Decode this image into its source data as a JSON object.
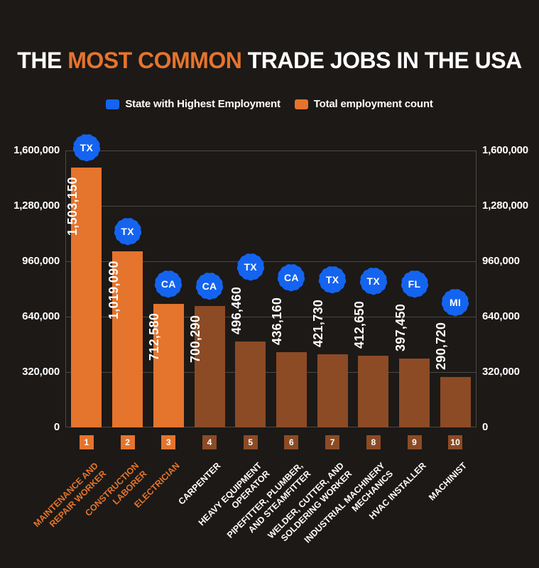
{
  "title": {
    "part1": "THE ",
    "highlight": "MOST COMMON",
    "part2": " TRADE JOBS IN THE USA"
  },
  "legend": {
    "items": [
      {
        "label": "State with Highest Employment",
        "color": "#1464F0"
      },
      {
        "label": "Total employment count",
        "color": "#E5742C"
      }
    ]
  },
  "colors": {
    "background": "#1C1917",
    "orange": "#E5742C",
    "brown": "#8C4B25",
    "badge_blue": "#1464F0",
    "grid": "#4C4843",
    "text": "#FFFFFF"
  },
  "chart_data": {
    "type": "bar",
    "title": "THE MOST COMMON TRADE JOBS IN THE USA",
    "xlabel": "",
    "ylabel": "",
    "ylim": [
      0,
      1600000
    ],
    "ytick_labels": [
      "0",
      "320,000",
      "640,000",
      "960,000",
      "1,280,000",
      "1,600,000"
    ],
    "grid": true,
    "legend_position": "top",
    "series_note": "bar color orange = top-3 trade (highlighted), brown = ranks 4-10; blue seal badge = state with highest employment",
    "items": [
      {
        "rank": 1,
        "label": "MAINTENANCE AND REPAIR WORKER",
        "label_lines": [
          "MAINTENANCE AND",
          "REPAIR WORKER"
        ],
        "value": 1503150,
        "value_label": "1,503,150",
        "state": "TX",
        "highlighted": true
      },
      {
        "rank": 2,
        "label": "CONSTRUCTION LABORER",
        "label_lines": [
          "CONSTRUCTION",
          "LABORER"
        ],
        "value": 1019090,
        "value_label": "1,019,090",
        "state": "TX",
        "highlighted": true
      },
      {
        "rank": 3,
        "label": "ELECTRICIAN",
        "label_lines": [
          "ELECTRICIAN"
        ],
        "value": 712580,
        "value_label": "712,580",
        "state": "CA",
        "highlighted": true
      },
      {
        "rank": 4,
        "label": "CARPENTER",
        "label_lines": [
          "CARPENTER"
        ],
        "value": 700290,
        "value_label": "700,290",
        "state": "CA",
        "highlighted": false
      },
      {
        "rank": 5,
        "label": "HEAVY EQUIPMENT OPERATOR",
        "label_lines": [
          "HEAVY EQUIPMENT",
          "OPERATOR"
        ],
        "value": 496460,
        "value_label": "496,460",
        "state": "TX",
        "highlighted": false
      },
      {
        "rank": 6,
        "label": "PIPEFITTER, PLUMBER, AND STEAMFITTER",
        "label_lines": [
          "PIPEFITTER, PLUMBER,",
          "AND STEAMFITTER"
        ],
        "value": 436160,
        "value_label": "436,160",
        "state": "CA",
        "highlighted": false
      },
      {
        "rank": 7,
        "label": "WELDER, CUTTER, AND SOLDERING WORKER",
        "label_lines": [
          "WELDER, CUTTER, AND",
          "SOLDERING WORKER"
        ],
        "value": 421730,
        "value_label": "421,730",
        "state": "TX",
        "highlighted": false
      },
      {
        "rank": 8,
        "label": "INDUSTRIAL MACHINERY MECHANICS",
        "label_lines": [
          "INDUSTRIAL MACHINERY",
          "MECHANICS"
        ],
        "value": 412650,
        "value_label": "412,650",
        "state": "TX",
        "highlighted": false
      },
      {
        "rank": 9,
        "label": "HVAC INSTALLER",
        "label_lines": [
          "HVAC INSTALLER"
        ],
        "value": 397450,
        "value_label": "397,450",
        "state": "FL",
        "highlighted": false
      },
      {
        "rank": 10,
        "label": "MACHINIST",
        "label_lines": [
          "MACHINIST"
        ],
        "value": 290720,
        "value_label": "290,720",
        "state": "MI",
        "highlighted": false
      }
    ]
  }
}
